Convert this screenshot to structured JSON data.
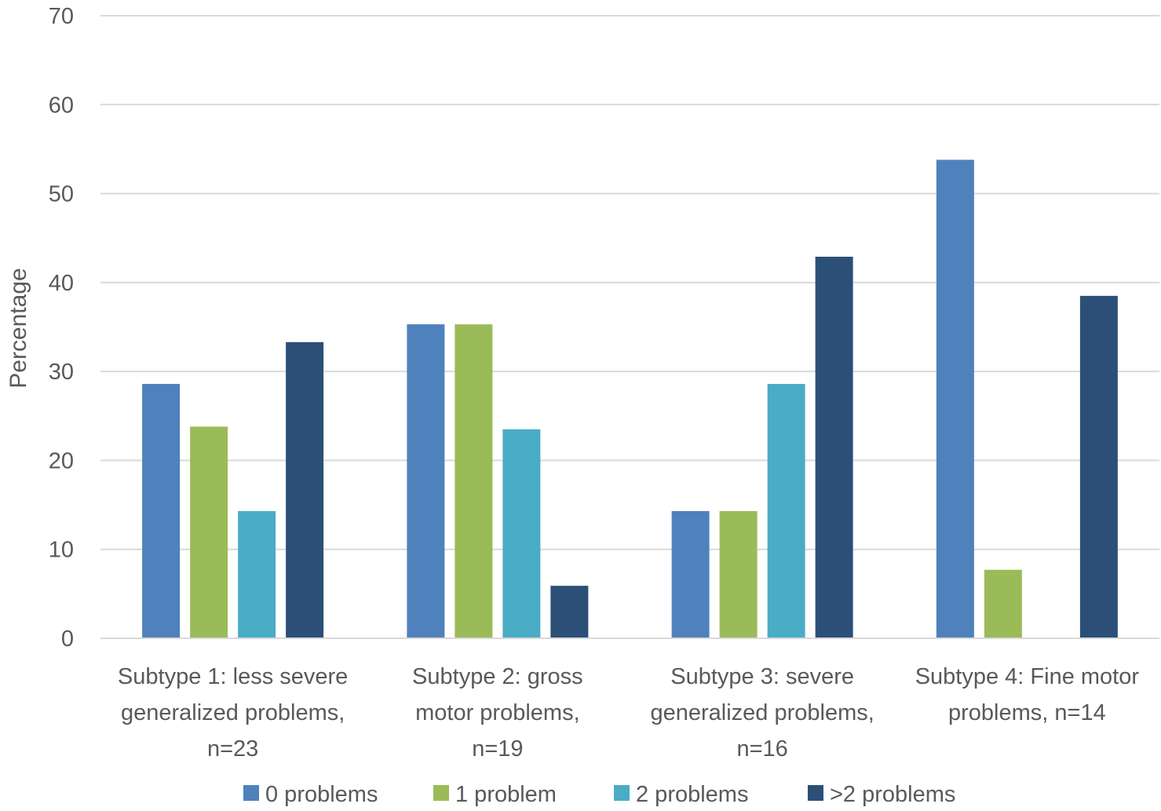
{
  "chart_data": {
    "type": "bar",
    "title": "",
    "xlabel": "",
    "ylabel": "Percentage",
    "ylim": [
      0,
      70
    ],
    "yticks": [
      0,
      10,
      20,
      30,
      40,
      50,
      60,
      70
    ],
    "grid": true,
    "legend_position": "bottom",
    "categories": [
      [
        "Subtype 1: less severe",
        "generalized problems,",
        "n=23"
      ],
      [
        "Subtype 2: gross",
        "motor problems,",
        "n=19"
      ],
      [
        "Subtype 3: severe",
        "generalized problems,",
        "n=16"
      ],
      [
        "Subtype 4: Fine motor",
        "problems, n=14"
      ]
    ],
    "series": [
      {
        "name": "0 problems",
        "color": "#4f81bd",
        "values": [
          28.6,
          35.3,
          14.3,
          53.8
        ]
      },
      {
        "name": "1 problem",
        "color": "#9bbb59",
        "values": [
          23.8,
          35.3,
          14.3,
          7.7
        ]
      },
      {
        "name": "2 problems",
        "color": "#4bacc6",
        "values": [
          14.3,
          23.5,
          28.6,
          0
        ]
      },
      {
        "name": ">2 problems",
        "color": "#2c4f78",
        "values": [
          33.3,
          5.9,
          42.9,
          38.5
        ]
      }
    ]
  }
}
